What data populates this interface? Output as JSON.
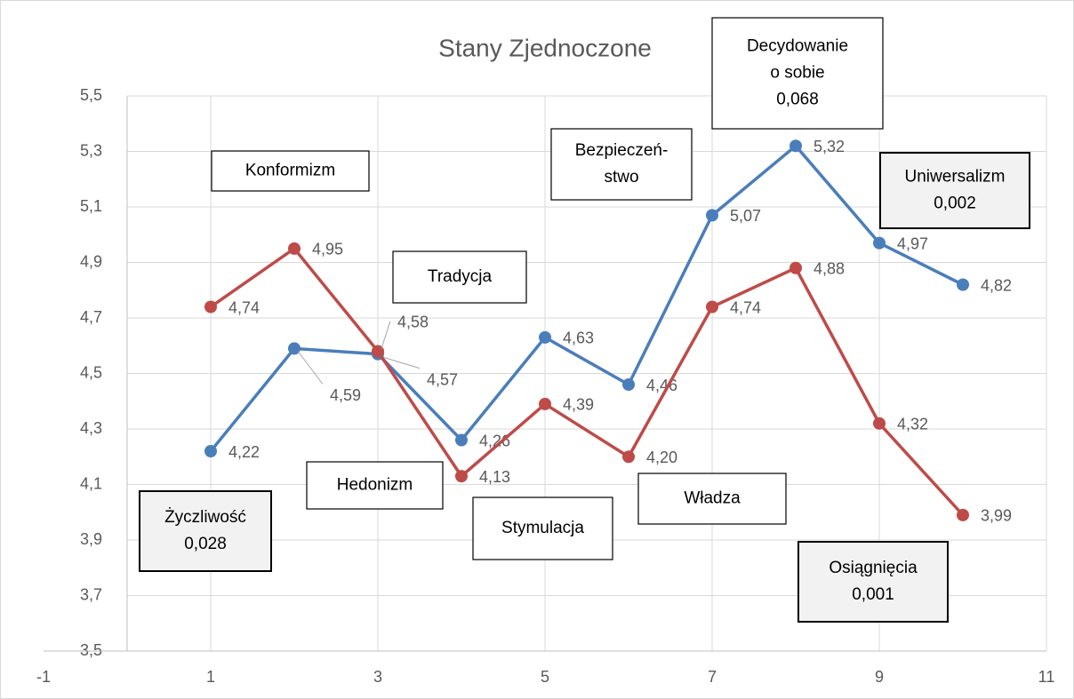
{
  "chart_data": {
    "type": "line",
    "title": "Stany Zjednoczone",
    "x": [
      1,
      2,
      3,
      4,
      5,
      6,
      7,
      8,
      9,
      10
    ],
    "series": [
      {
        "color": "#4a7ebb",
        "values": [
          4.22,
          4.59,
          4.57,
          4.26,
          4.63,
          4.46,
          5.07,
          5.32,
          4.97,
          4.82
        ],
        "value_labels": [
          "4,22",
          "4,59",
          "4,57",
          "4,26",
          "4,63",
          "4,46",
          "5,07",
          "5,32",
          "4,97",
          "4,82"
        ]
      },
      {
        "color": "#be4b48",
        "values": [
          4.74,
          4.95,
          4.58,
          4.13,
          4.39,
          4.2,
          4.74,
          4.88,
          4.32,
          3.99
        ],
        "value_labels": [
          "4,74",
          "4,95",
          "4,58",
          "4,13",
          "4,39",
          "4,20",
          "4,74",
          "4,88",
          "4,32",
          "3,99"
        ]
      }
    ],
    "xlim": [
      -1,
      11
    ],
    "xticks": [
      -1,
      1,
      3,
      5,
      7,
      9,
      11
    ],
    "ylim": [
      3.5,
      5.5
    ],
    "yticks": [
      {
        "value": 3.5,
        "label": "3,5"
      },
      {
        "value": 3.7,
        "label": "3,7"
      },
      {
        "value": 3.9,
        "label": "3,9"
      },
      {
        "value": 4.1,
        "label": "4,1"
      },
      {
        "value": 4.3,
        "label": "4,3"
      },
      {
        "value": 4.5,
        "label": "4,5"
      },
      {
        "value": 4.7,
        "label": "4,7"
      },
      {
        "value": 4.9,
        "label": "4,9"
      },
      {
        "value": 5.1,
        "label": "5,1"
      },
      {
        "value": 5.3,
        "label": "5,3"
      },
      {
        "value": 5.5,
        "label": "5,5"
      }
    ],
    "grid": true,
    "annotations": [
      {
        "lines": [
          "Konformizm"
        ]
      },
      {
        "lines": [
          "Tradycja"
        ]
      },
      {
        "lines": [
          "Hedonizm"
        ]
      },
      {
        "lines": [
          "Stymulacja"
        ]
      },
      {
        "lines": [
          "Władza"
        ]
      },
      {
        "lines": [
          "Bezpieczeń-",
          "stwo"
        ]
      },
      {
        "lines": [
          "Decydowanie",
          "o sobie",
          "0,068"
        ]
      },
      {
        "lines": [
          "Uniwersalizm",
          "0,002"
        ]
      },
      {
        "lines": [
          "Życzliwość",
          "0,028"
        ]
      },
      {
        "lines": [
          "Osiągnięcia",
          "0,001"
        ]
      }
    ]
  }
}
